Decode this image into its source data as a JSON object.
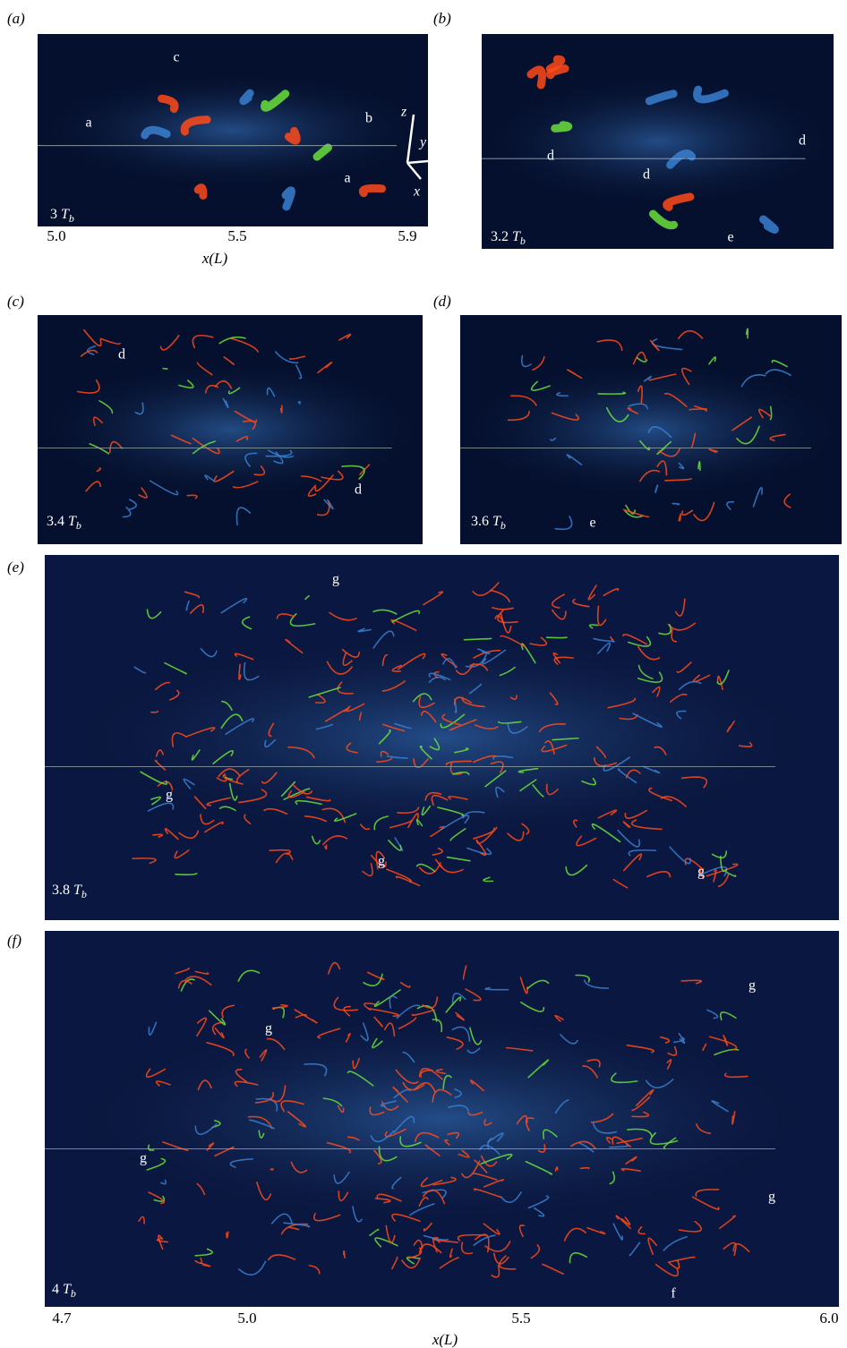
{
  "panels": [
    {
      "label": "(a)",
      "time": {
        "value": "3",
        "symbol": "T",
        "subscript": "b"
      },
      "annotations": [
        "c",
        "a",
        "b",
        "a",
        "c"
      ],
      "axes": [
        "z",
        "y",
        "x"
      ],
      "x_axis": {
        "ticks": [
          "5.0",
          "5.5",
          "5.9"
        ],
        "label": "x(L)"
      }
    },
    {
      "label": "(b)",
      "time": {
        "value": "3.2",
        "symbol": "T",
        "subscript": "b"
      },
      "annotations": [
        "d",
        "d",
        "d",
        "e"
      ]
    },
    {
      "label": "(c)",
      "time": {
        "value": "3.4",
        "symbol": "T",
        "subscript": "b"
      },
      "annotations": [
        "d",
        "d"
      ]
    },
    {
      "label": "(d)",
      "time": {
        "value": "3.6",
        "symbol": "T",
        "subscript": "b"
      },
      "annotations": [
        "e"
      ]
    },
    {
      "label": "(e)",
      "time": {
        "value": "3.8",
        "symbol": "T",
        "subscript": "b"
      },
      "annotations": [
        "g",
        "g",
        "g",
        "g"
      ]
    },
    {
      "label": "(f)",
      "time": {
        "value": "4",
        "symbol": "T",
        "subscript": "b"
      },
      "annotations": [
        "g",
        "g",
        "g",
        "g",
        "f"
      ],
      "x_axis": {
        "ticks": [
          "4.7",
          "5.0",
          "5.5",
          "6.0"
        ],
        "label": "x(L)"
      }
    }
  ]
}
